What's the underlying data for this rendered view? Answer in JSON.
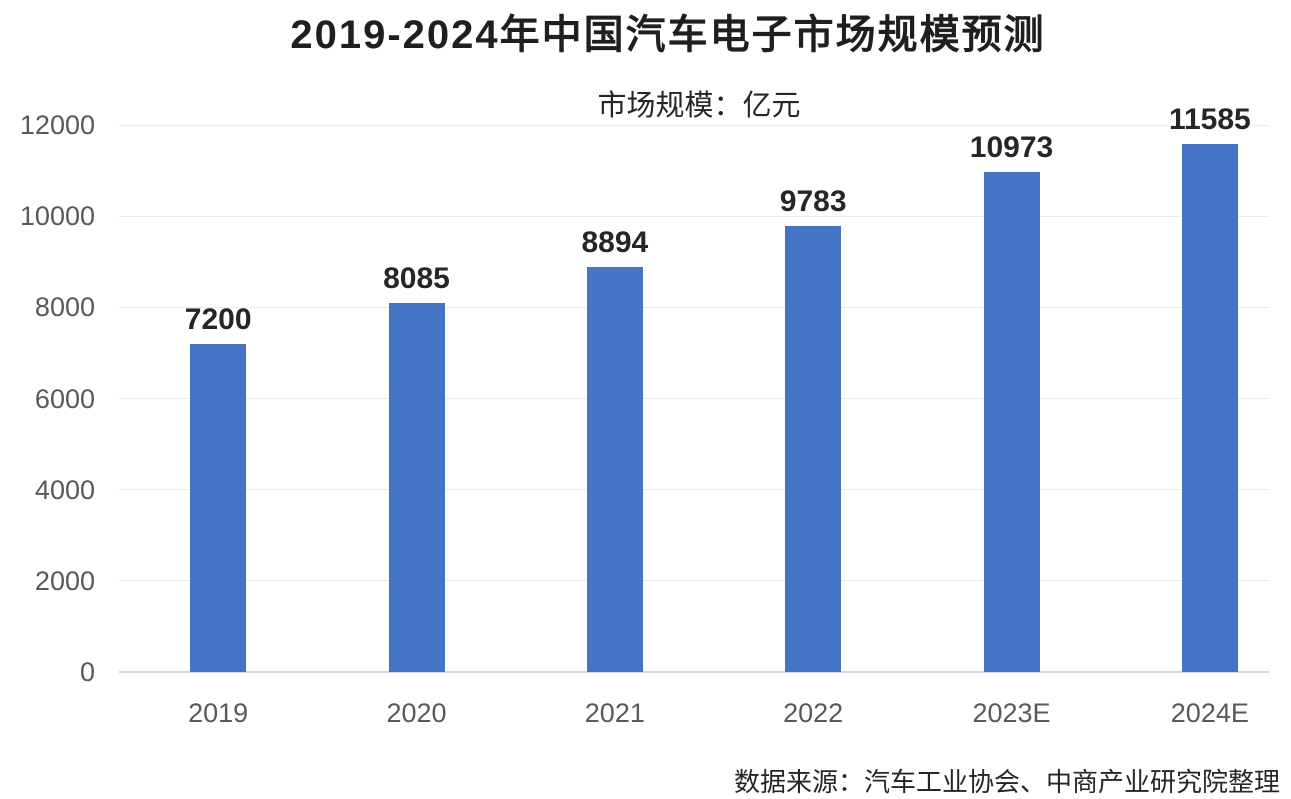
{
  "chart_data": {
    "type": "bar",
    "title": "2019-2024年中国汽车电子市场规模预测",
    "subtitle": "市场规模：亿元",
    "categories": [
      "2019",
      "2020",
      "2021",
      "2022",
      "2023E",
      "2024E"
    ],
    "values": [
      7200,
      8085,
      8894,
      9783,
      10973,
      11585
    ],
    "value_labels": [
      "7200",
      "8085",
      "8894",
      "9783",
      "10973",
      "11585"
    ],
    "ylim": [
      0,
      12000
    ],
    "yticks": [
      0,
      2000,
      4000,
      6000,
      8000,
      10000,
      12000
    ],
    "grid": true,
    "legend_position": "none",
    "bar_color": "#4574c7",
    "gridline_color": "#ececec",
    "baseline_color": "#d6d6d6",
    "axis_label_color": "#595959",
    "value_label_color": "#262626",
    "source": "数据来源：汽车工业协会、中商产业研究院整理"
  }
}
